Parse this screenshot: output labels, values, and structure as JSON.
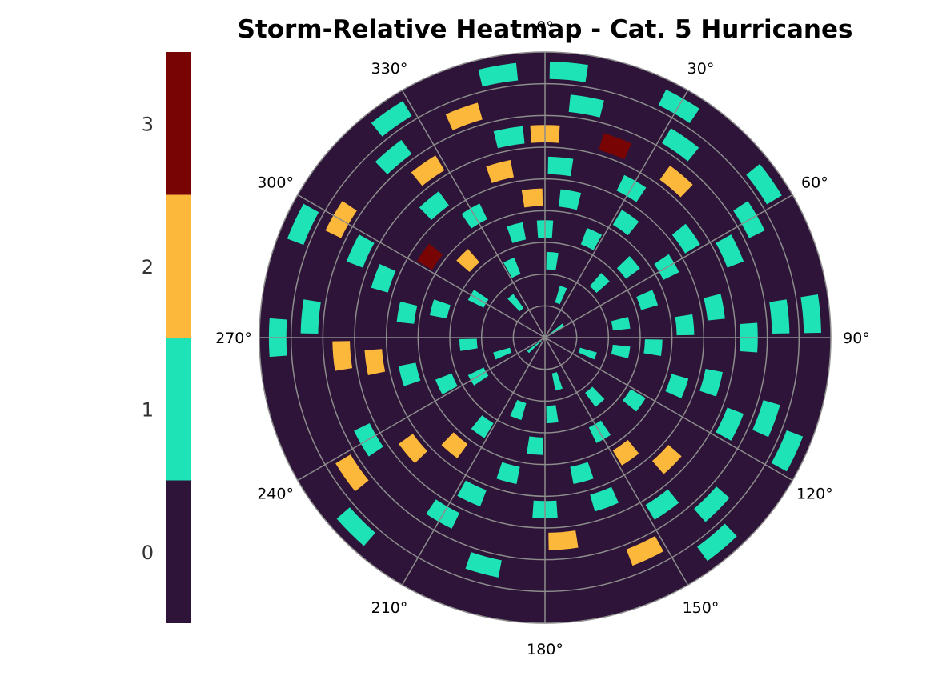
{
  "chart_data": {
    "type": "heatmap",
    "projection": "polar",
    "title": "Storm-Relative Heatmap - Cat. 5 Hurricanes",
    "theta_zero_location": "top",
    "theta_direction": "clockwise",
    "theta_tick_labels": [
      "0°",
      "30°",
      "60°",
      "90°",
      "120°",
      "150°",
      "180°",
      "210°",
      "240°",
      "270°",
      "300°",
      "330°"
    ],
    "theta_ticks_deg": [
      0,
      30,
      60,
      90,
      120,
      150,
      180,
      210,
      240,
      270,
      300,
      330
    ],
    "r_grid_count": 9,
    "r_tick_labels_visible": false,
    "grid": true,
    "colorbar": {
      "placement": "left",
      "levels": [
        0,
        1,
        2,
        3
      ],
      "tick_labels": [
        "0",
        "1",
        "2",
        "3"
      ],
      "range": [
        -0.5,
        3.5
      ],
      "colors": [
        "#2e1438",
        "#1ee3b6",
        "#fbb83a",
        "#780504"
      ]
    },
    "background_value": 0,
    "grid_color": "#8c8c8c",
    "cells": [
      {
        "ring": 0,
        "theta": 55,
        "value": 1
      },
      {
        "ring": 0,
        "theta": 230,
        "value": 1
      },
      {
        "ring": 1,
        "theta": 20,
        "value": 1
      },
      {
        "ring": 1,
        "theta": 110,
        "value": 1
      },
      {
        "ring": 1,
        "theta": 165,
        "value": 1
      },
      {
        "ring": 1,
        "theta": 250,
        "value": 1
      },
      {
        "ring": 1,
        "theta": 320,
        "value": 1
      },
      {
        "ring": 2,
        "theta": 5,
        "value": 1
      },
      {
        "ring": 2,
        "theta": 45,
        "value": 1
      },
      {
        "ring": 2,
        "theta": 80,
        "value": 1
      },
      {
        "ring": 2,
        "theta": 100,
        "value": 1
      },
      {
        "ring": 2,
        "theta": 140,
        "value": 1
      },
      {
        "ring": 2,
        "theta": 175,
        "value": 1
      },
      {
        "ring": 2,
        "theta": 200,
        "value": 1
      },
      {
        "ring": 2,
        "theta": 240,
        "value": 1
      },
      {
        "ring": 2,
        "theta": 265,
        "value": 1
      },
      {
        "ring": 2,
        "theta": 300,
        "value": 1
      },
      {
        "ring": 2,
        "theta": 335,
        "value": 1
      },
      {
        "ring": 3,
        "theta": 0,
        "value": 1
      },
      {
        "ring": 3,
        "theta": 25,
        "value": 1
      },
      {
        "ring": 3,
        "theta": 50,
        "value": 1
      },
      {
        "ring": 3,
        "theta": 70,
        "value": 1
      },
      {
        "ring": 3,
        "theta": 95,
        "value": 1
      },
      {
        "ring": 3,
        "theta": 125,
        "value": 1
      },
      {
        "ring": 3,
        "theta": 150,
        "value": 1
      },
      {
        "ring": 3,
        "theta": 185,
        "value": 1
      },
      {
        "ring": 3,
        "theta": 215,
        "value": 1
      },
      {
        "ring": 3,
        "theta": 245,
        "value": 1
      },
      {
        "ring": 3,
        "theta": 285,
        "value": 1
      },
      {
        "ring": 3,
        "theta": 315,
        "value": 2
      },
      {
        "ring": 3,
        "theta": 345,
        "value": 1
      },
      {
        "ring": 4,
        "theta": 10,
        "value": 1
      },
      {
        "ring": 4,
        "theta": 35,
        "value": 1
      },
      {
        "ring": 4,
        "theta": 60,
        "value": 1
      },
      {
        "ring": 4,
        "theta": 85,
        "value": 1
      },
      {
        "ring": 4,
        "theta": 110,
        "value": 1
      },
      {
        "ring": 4,
        "theta": 145,
        "value": 2
      },
      {
        "ring": 4,
        "theta": 165,
        "value": 1
      },
      {
        "ring": 4,
        "theta": 195,
        "value": 1
      },
      {
        "ring": 4,
        "theta": 220,
        "value": 2
      },
      {
        "ring": 4,
        "theta": 255,
        "value": 1
      },
      {
        "ring": 4,
        "theta": 280,
        "value": 1
      },
      {
        "ring": 4,
        "theta": 305,
        "value": 3
      },
      {
        "ring": 4,
        "theta": 330,
        "value": 1
      },
      {
        "ring": 4,
        "theta": 355,
        "value": 2
      },
      {
        "ring": 5,
        "theta": 5,
        "value": 1
      },
      {
        "ring": 5,
        "theta": 30,
        "value": 1
      },
      {
        "ring": 5,
        "theta": 55,
        "value": 1
      },
      {
        "ring": 5,
        "theta": 80,
        "value": 1
      },
      {
        "ring": 5,
        "theta": 105,
        "value": 1
      },
      {
        "ring": 5,
        "theta": 135,
        "value": 2
      },
      {
        "ring": 5,
        "theta": 160,
        "value": 1
      },
      {
        "ring": 5,
        "theta": 180,
        "value": 1
      },
      {
        "ring": 5,
        "theta": 205,
        "value": 1
      },
      {
        "ring": 5,
        "theta": 230,
        "value": 2
      },
      {
        "ring": 5,
        "theta": 262,
        "value": 2
      },
      {
        "ring": 5,
        "theta": 290,
        "value": 1
      },
      {
        "ring": 5,
        "theta": 320,
        "value": 1
      },
      {
        "ring": 5,
        "theta": 345,
        "value": 2
      },
      {
        "ring": 6,
        "theta": 0,
        "value": 2
      },
      {
        "ring": 6,
        "theta": 20,
        "value": 3
      },
      {
        "ring": 6,
        "theta": 40,
        "value": 2
      },
      {
        "ring": 6,
        "theta": 65,
        "value": 1
      },
      {
        "ring": 6,
        "theta": 90,
        "value": 1
      },
      {
        "ring": 6,
        "theta": 115,
        "value": 1
      },
      {
        "ring": 6,
        "theta": 145,
        "value": 1
      },
      {
        "ring": 6,
        "theta": 175,
        "value": 2
      },
      {
        "ring": 6,
        "theta": 210,
        "value": 1
      },
      {
        "ring": 6,
        "theta": 240,
        "value": 1
      },
      {
        "ring": 6,
        "theta": 265,
        "value": 2
      },
      {
        "ring": 6,
        "theta": 295,
        "value": 1
      },
      {
        "ring": 6,
        "theta": 325,
        "value": 2
      },
      {
        "ring": 6,
        "theta": 350,
        "value": 1
      },
      {
        "ring": 7,
        "theta": 10,
        "value": 1
      },
      {
        "ring": 7,
        "theta": 35,
        "value": 1
      },
      {
        "ring": 7,
        "theta": 60,
        "value": 1
      },
      {
        "ring": 7,
        "theta": 85,
        "value": 1
      },
      {
        "ring": 7,
        "theta": 110,
        "value": 1
      },
      {
        "ring": 7,
        "theta": 135,
        "value": 1
      },
      {
        "ring": 7,
        "theta": 155,
        "value": 2
      },
      {
        "ring": 7,
        "theta": 195,
        "value": 1
      },
      {
        "ring": 7,
        "theta": 235,
        "value": 2
      },
      {
        "ring": 7,
        "theta": 275,
        "value": 1
      },
      {
        "ring": 7,
        "theta": 300,
        "value": 2
      },
      {
        "ring": 7,
        "theta": 320,
        "value": 1
      },
      {
        "ring": 7,
        "theta": 340,
        "value": 2
      },
      {
        "ring": 8,
        "theta": 5,
        "value": 1
      },
      {
        "ring": 8,
        "theta": 30,
        "value": 1
      },
      {
        "ring": 8,
        "theta": 55,
        "value": 1
      },
      {
        "ring": 8,
        "theta": 85,
        "value": 1
      },
      {
        "ring": 8,
        "theta": 115,
        "value": 1
      },
      {
        "ring": 8,
        "theta": 140,
        "value": 1
      },
      {
        "ring": 8,
        "theta": 225,
        "value": 1
      },
      {
        "ring": 8,
        "theta": 270,
        "value": 1
      },
      {
        "ring": 8,
        "theta": 295,
        "value": 1
      },
      {
        "ring": 8,
        "theta": 325,
        "value": 1
      },
      {
        "ring": 8,
        "theta": 350,
        "value": 1
      }
    ]
  }
}
